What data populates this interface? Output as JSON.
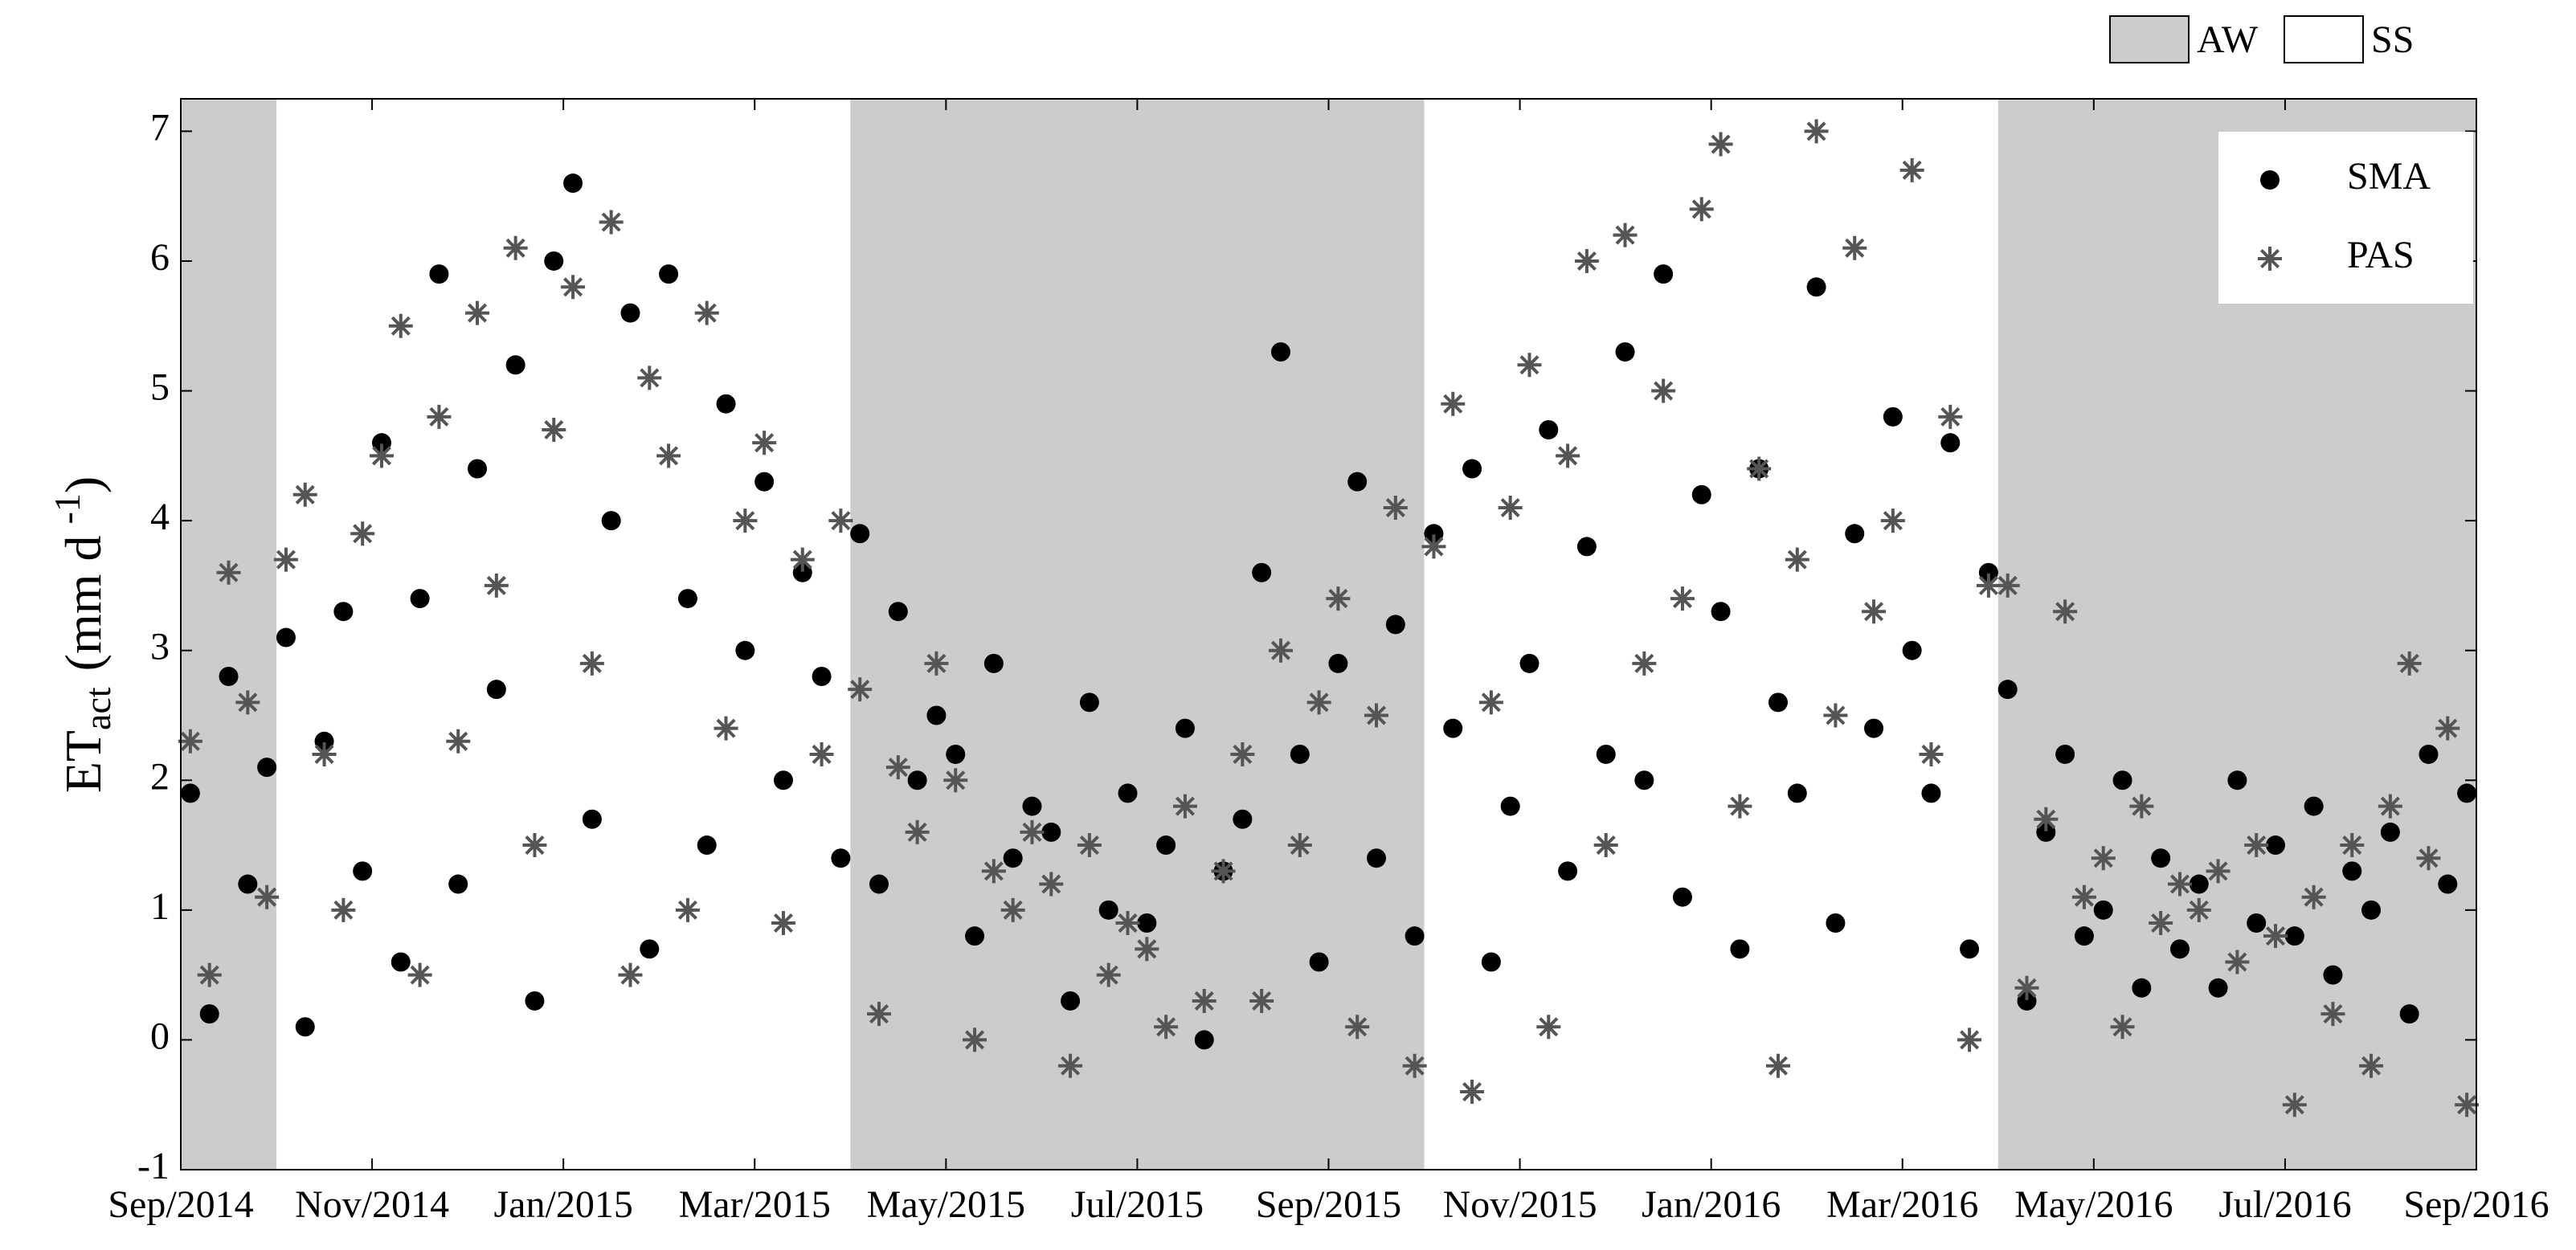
{
  "chart_data": {
    "type": "scatter",
    "y_label": {
      "main": "ET",
      "sub": "act",
      "unit": "(mm d",
      "sup": "-1",
      "end": ")"
    },
    "x": [
      0.1,
      0.3,
      0.5,
      0.7,
      0.9,
      1.1,
      1.3,
      1.5,
      1.7,
      1.9,
      2.1,
      2.3,
      2.5,
      2.7,
      2.9,
      3.1,
      3.3,
      3.5,
      3.7,
      3.9,
      4.1,
      4.3,
      4.5,
      4.7,
      4.9,
      5.1,
      5.3,
      5.5,
      5.7,
      5.9,
      6.1,
      6.3,
      6.5,
      6.7,
      6.9,
      7.1,
      7.3,
      7.5,
      7.7,
      7.9,
      8.1,
      8.3,
      8.5,
      8.7,
      8.9,
      9.1,
      9.3,
      9.5,
      9.7,
      9.9,
      10.1,
      10.3,
      10.5,
      10.7,
      10.9,
      11.1,
      11.3,
      11.5,
      11.7,
      11.9,
      12.1,
      12.3,
      12.5,
      12.7,
      12.9,
      13.1,
      13.3,
      13.5,
      13.7,
      13.9,
      14.1,
      14.3,
      14.5,
      14.7,
      14.9,
      15.1,
      15.3,
      15.5,
      15.7,
      15.9,
      16.1,
      16.3,
      16.5,
      16.7,
      16.9,
      17.1,
      17.3,
      17.5,
      17.7,
      17.9,
      18.1,
      18.3,
      18.5,
      18.7,
      18.9,
      19.1,
      19.3,
      19.5,
      19.7,
      19.9,
      20.1,
      20.3,
      20.5,
      20.7,
      20.9,
      21.1,
      21.3,
      21.5,
      21.7,
      21.9,
      22.1,
      22.3,
      22.5,
      22.7,
      22.9,
      23.1,
      23.3,
      23.5,
      23.7,
      23.9
    ],
    "series": [
      {
        "name": "SMA",
        "color": "#000000",
        "marker": "circle",
        "values": [
          1.9,
          0.2,
          2.8,
          1.2,
          2.1,
          3.1,
          0.1,
          2.3,
          3.3,
          1.3,
          4.6,
          0.6,
          3.4,
          5.9,
          1.2,
          4.4,
          2.7,
          5.2,
          0.3,
          6.0,
          6.6,
          1.7,
          4.0,
          5.6,
          0.7,
          5.9,
          3.4,
          1.5,
          4.9,
          3.0,
          4.3,
          2.0,
          3.6,
          2.8,
          1.4,
          3.9,
          1.2,
          3.3,
          2.0,
          2.5,
          2.2,
          0.8,
          2.9,
          1.4,
          1.8,
          1.6,
          0.3,
          2.6,
          1.0,
          1.9,
          0.9,
          1.5,
          2.4,
          0.0,
          1.3,
          1.7,
          3.6,
          5.3,
          2.2,
          0.6,
          2.9,
          4.3,
          1.4,
          3.2,
          0.8,
          3.9,
          2.4,
          4.4,
          0.6,
          1.8,
          2.9,
          4.7,
          1.3,
          3.8,
          2.2,
          5.3,
          2.0,
          5.9,
          1.1,
          4.2,
          3.3,
          0.7,
          4.4,
          2.6,
          1.9,
          5.8,
          0.9,
          3.9,
          2.4,
          4.8,
          3.0,
          1.9,
          4.6,
          0.7,
          3.6,
          2.7,
          0.3,
          1.6,
          2.2,
          0.8,
          1.0,
          2.0,
          0.4,
          1.4,
          0.7,
          1.2,
          0.4,
          2.0,
          0.9,
          1.5,
          0.8,
          1.8,
          0.5,
          1.3,
          1.0,
          1.6,
          0.2,
          2.2,
          1.2,
          1.9
        ]
      },
      {
        "name": "PAS",
        "color": "#555555",
        "marker": "asterisk",
        "values": [
          2.3,
          0.5,
          3.6,
          2.6,
          1.1,
          3.7,
          4.2,
          2.2,
          1.0,
          3.9,
          4.5,
          5.5,
          0.5,
          4.8,
          2.3,
          5.6,
          3.5,
          6.1,
          1.5,
          4.7,
          5.8,
          2.9,
          6.3,
          0.5,
          5.1,
          4.5,
          1.0,
          5.6,
          2.4,
          4.0,
          4.6,
          0.9,
          3.7,
          2.2,
          4.0,
          2.7,
          0.2,
          2.1,
          1.6,
          2.9,
          2.0,
          0.0,
          1.3,
          1.0,
          1.6,
          1.2,
          -0.2,
          1.5,
          0.5,
          0.9,
          0.7,
          0.1,
          1.8,
          0.3,
          1.3,
          2.2,
          0.3,
          3.0,
          1.5,
          2.6,
          3.4,
          0.1,
          2.5,
          4.1,
          -0.2,
          3.8,
          4.9,
          -0.4,
          2.6,
          4.1,
          5.2,
          0.1,
          4.5,
          6.0,
          1.5,
          6.2,
          2.9,
          5.0,
          3.4,
          6.4,
          6.9,
          1.8,
          4.4,
          -0.2,
          3.7,
          7.0,
          2.5,
          6.1,
          3.3,
          4.0,
          6.7,
          2.2,
          4.8,
          0.0,
          3.5,
          3.5,
          0.4,
          1.7,
          3.3,
          1.1,
          1.4,
          0.1,
          1.8,
          0.9,
          1.2,
          1.0,
          1.3,
          0.6,
          1.5,
          0.8,
          -0.5,
          1.1,
          0.2,
          1.5,
          -0.2,
          1.8,
          2.9,
          1.4,
          2.4,
          -0.5
        ]
      }
    ],
    "xlim": [
      0,
      24
    ],
    "xticks": [
      {
        "value": 0,
        "label": "Sep/2014"
      },
      {
        "value": 2,
        "label": "Nov/2014"
      },
      {
        "value": 4,
        "label": "Jan/2015"
      },
      {
        "value": 6,
        "label": "Mar/2015"
      },
      {
        "value": 8,
        "label": "May/2015"
      },
      {
        "value": 10,
        "label": "Jul/2015"
      },
      {
        "value": 12,
        "label": "Sep/2015"
      },
      {
        "value": 14,
        "label": "Nov/2015"
      },
      {
        "value": 16,
        "label": "Jan/2016"
      },
      {
        "value": 18,
        "label": "Mar/2016"
      },
      {
        "value": 20,
        "label": "May/2016"
      },
      {
        "value": 22,
        "label": "Jul/2016"
      },
      {
        "value": 24,
        "label": "Sep/2016"
      }
    ],
    "ylim": [
      -1,
      7.25
    ],
    "yticks": [
      -1,
      0,
      1,
      2,
      3,
      4,
      5,
      6,
      7
    ],
    "aw_periods": [
      [
        0,
        1
      ],
      [
        7,
        13
      ],
      [
        19,
        24
      ]
    ],
    "period_legend": [
      {
        "name": "AW",
        "color": "#cccccc"
      },
      {
        "name": "SS",
        "color": "#ffffff"
      }
    ],
    "legend": "upper right"
  }
}
